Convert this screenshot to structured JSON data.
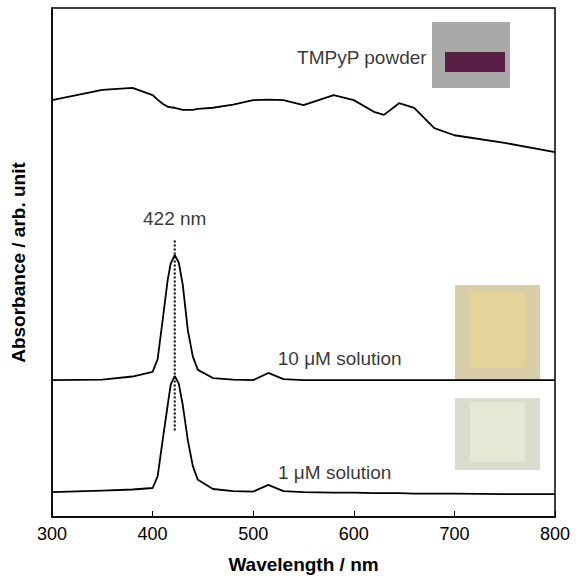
{
  "chart_data": {
    "type": "line",
    "x_label": "Wavelength / nm",
    "y_label": "Absorbance / arb. unit",
    "xlim": [
      300,
      800
    ],
    "xticks": [
      300,
      400,
      500,
      600,
      700,
      800
    ],
    "ylim": [
      0,
      10
    ],
    "tick_labels": "x",
    "grid": false,
    "x": [
      300,
      350,
      380,
      400,
      405,
      410,
      415,
      418,
      422,
      426,
      430,
      435,
      440,
      445,
      460,
      480,
      500,
      515,
      530,
      550,
      580,
      600,
      620,
      630,
      645,
      660,
      680,
      700,
      750,
      800
    ],
    "series": [
      {
        "color": "#000000",
        "values": [
          8.19,
          8.39,
          8.43,
          8.29,
          8.2,
          8.12,
          8.06,
          8.05,
          8.04,
          8.02,
          8.0,
          8.0,
          8.0,
          8.02,
          8.04,
          8.1,
          8.19,
          8.2,
          8.19,
          8.09,
          8.29,
          8.19,
          7.96,
          7.9,
          8.13,
          8.04,
          7.64,
          7.5,
          7.35,
          7.17
        ]
      },
      {
        "color": "#000000",
        "values": [
          2.69,
          2.7,
          2.76,
          2.85,
          3.1,
          3.87,
          4.66,
          4.98,
          5.15,
          5.0,
          4.56,
          3.67,
          3.15,
          2.89,
          2.73,
          2.7,
          2.69,
          2.83,
          2.71,
          2.69,
          2.69,
          2.69,
          2.69,
          2.69,
          2.69,
          2.69,
          2.69,
          2.69,
          2.69,
          2.69
        ]
      },
      {
        "color": "#000000",
        "values": [
          0.49,
          0.52,
          0.54,
          0.57,
          0.8,
          1.51,
          2.2,
          2.6,
          2.77,
          2.62,
          2.2,
          1.51,
          1.0,
          0.73,
          0.55,
          0.51,
          0.5,
          0.63,
          0.51,
          0.49,
          0.48,
          0.48,
          0.47,
          0.47,
          0.47,
          0.46,
          0.46,
          0.46,
          0.45,
          0.45
        ]
      }
    ],
    "annotations": [
      {
        "text": "TMPyP powder",
        "x": 608,
        "y": 9.02
      },
      {
        "text": "10 μM solution",
        "x": 586,
        "y": 3.12
      },
      {
        "text": "1 μM solution",
        "x": 581,
        "y": 0.88
      },
      {
        "text": "422 nm",
        "x": 422,
        "y": 5.87,
        "line_style": "dotted",
        "line_y": [
          1.7,
          5.45
        ]
      }
    ]
  }
}
